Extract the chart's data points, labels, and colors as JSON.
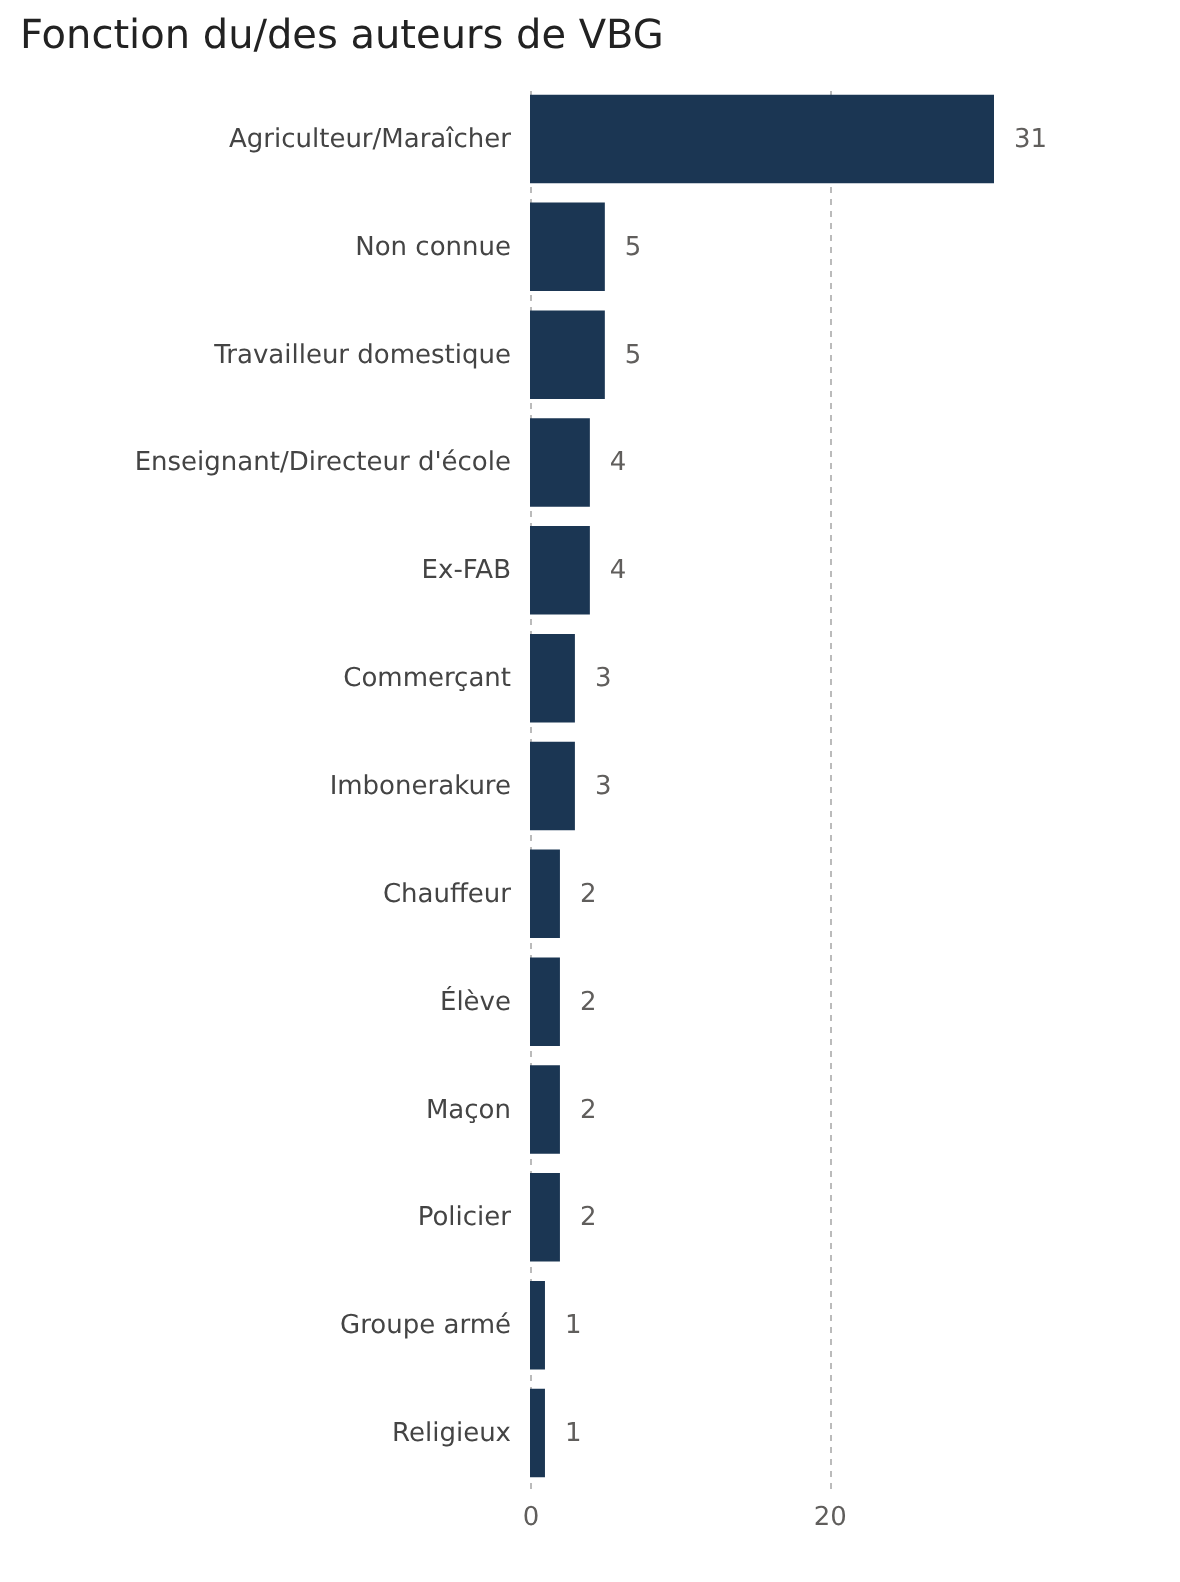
{
  "chart_data": {
    "type": "bar",
    "orientation": "horizontal",
    "title": "Fonction du/des auteurs de VBG",
    "categories": [
      "Agriculteur/Maraîcher",
      "Non connue",
      "Travailleur domestique",
      "Enseignant/Directeur d'école",
      "Ex-FAB",
      "Commerçant",
      "Imbonerakure",
      "Chauffeur",
      "Élève",
      "Maçon",
      "Policier",
      "Groupe armé",
      "Religieux"
    ],
    "values": [
      31,
      5,
      5,
      4,
      4,
      3,
      3,
      2,
      2,
      2,
      2,
      1,
      1
    ],
    "color": "#1b3653",
    "xlim": [
      0,
      31
    ],
    "xticks": [
      0,
      20
    ],
    "grid": "x",
    "data_labels": true
  }
}
